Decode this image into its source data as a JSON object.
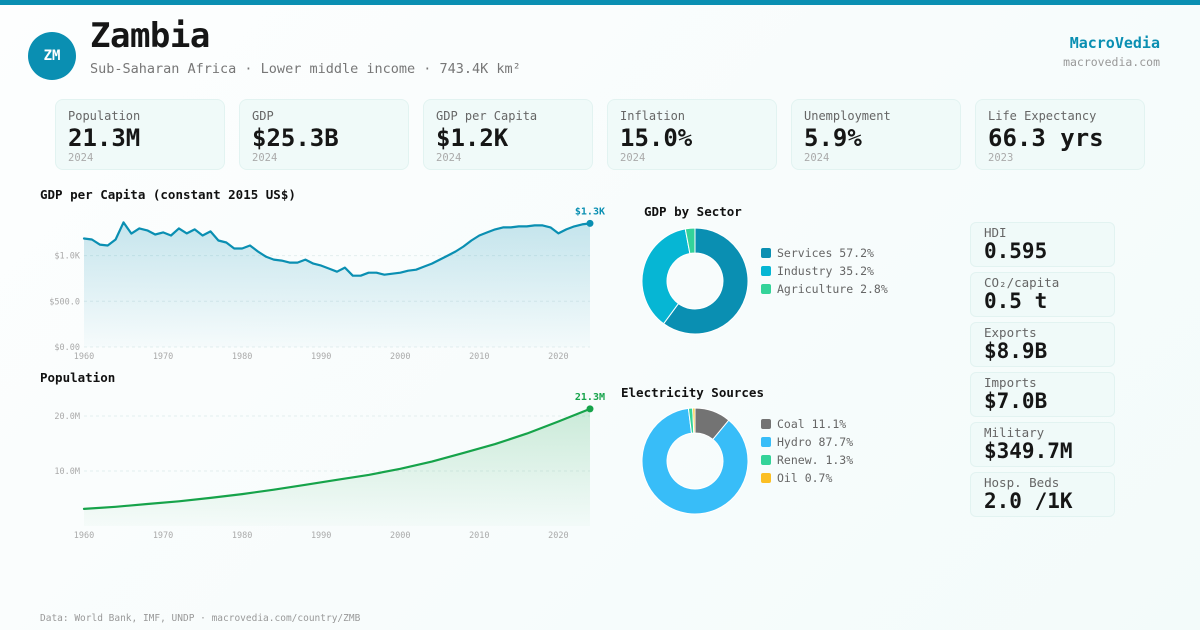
{
  "header": {
    "flag_code": "ZM",
    "country": "Zambia",
    "subtitle": "Sub-Saharan Africa · Lower middle income · 743.4K km²",
    "brand": "MacroVedia",
    "brand_url": "macrovedia.com",
    "accent_color": "#0a8fb2"
  },
  "kpis": [
    {
      "label": "Population",
      "value": "21.3M",
      "year": "2024"
    },
    {
      "label": "GDP",
      "value": "$25.3B",
      "year": "2024"
    },
    {
      "label": "GDP per Capita",
      "value": "$1.2K",
      "year": "2024"
    },
    {
      "label": "Inflation",
      "value": "15.0%",
      "year": "2024"
    },
    {
      "label": "Unemployment",
      "value": "5.9%",
      "year": "2024"
    },
    {
      "label": "Life Expectancy",
      "value": "66.3 yrs",
      "year": "2023"
    }
  ],
  "stats": [
    {
      "label": "HDI",
      "value": "0.595"
    },
    {
      "label": "CO₂/capita",
      "value": "0.5 t"
    },
    {
      "label": "Exports",
      "value": "$8.9B"
    },
    {
      "label": "Imports",
      "value": "$7.0B"
    },
    {
      "label": "Military",
      "value": "$349.7M"
    },
    {
      "label": "Hosp. Beds",
      "value": "2.0 /1K"
    }
  ],
  "footer": "Data: World Bank, IMF, UNDP · macrovedia.com/country/ZMB",
  "chart_data": [
    {
      "id": "gdp_per_capita",
      "type": "area",
      "title": "GDP per Capita (constant 2015 US$)",
      "xlabel": "",
      "ylabel": "",
      "color": "#0a8fb2",
      "x": [
        1960,
        1961,
        1962,
        1963,
        1964,
        1965,
        1966,
        1967,
        1968,
        1969,
        1970,
        1971,
        1972,
        1973,
        1974,
        1975,
        1976,
        1977,
        1978,
        1979,
        1980,
        1981,
        1982,
        1983,
        1984,
        1985,
        1986,
        1987,
        1988,
        1989,
        1990,
        1991,
        1992,
        1993,
        1994,
        1995,
        1996,
        1997,
        1998,
        1999,
        2000,
        2001,
        2002,
        2003,
        2004,
        2005,
        2006,
        2007,
        2008,
        2009,
        2010,
        2011,
        2012,
        2013,
        2014,
        2015,
        2016,
        2017,
        2018,
        2019,
        2020,
        2021,
        2022,
        2023,
        2024
      ],
      "values": [
        1187,
        1176,
        1120,
        1110,
        1176,
        1363,
        1240,
        1297,
        1275,
        1230,
        1253,
        1220,
        1297,
        1242,
        1286,
        1220,
        1264,
        1165,
        1143,
        1077,
        1077,
        1110,
        1044,
        989,
        956,
        945,
        923,
        923,
        956,
        912,
        890,
        857,
        824,
        868,
        780,
        780,
        813,
        813,
        791,
        802,
        813,
        835,
        846,
        879,
        912,
        956,
        1000,
        1044,
        1099,
        1165,
        1220,
        1253,
        1286,
        1308,
        1308,
        1319,
        1319,
        1330,
        1330,
        1308,
        1242,
        1286,
        1319,
        1341,
        1352
      ],
      "ylim": [
        0,
        1400
      ],
      "yticks": [
        0,
        500,
        1000
      ],
      "ytick_labels": [
        "$0.00",
        "$500.0",
        "$1.0K"
      ],
      "xticks": [
        1960,
        1970,
        1980,
        1990,
        2000,
        2010,
        2020
      ],
      "xtick_labels": [
        "1960",
        "1970",
        "1980",
        "1990",
        "2000",
        "2010",
        "2020"
      ],
      "end_label": "$1.3K",
      "grid": true
    },
    {
      "id": "population",
      "type": "area",
      "title": "Population",
      "xlabel": "",
      "ylabel": "",
      "color": "#16a34a",
      "x": [
        1960,
        1964,
        1968,
        1972,
        1976,
        1980,
        1984,
        1988,
        1992,
        1996,
        2000,
        2004,
        2008,
        2012,
        2016,
        2020,
        2024
      ],
      "values": [
        3.1,
        3.5,
        4.0,
        4.5,
        5.1,
        5.8,
        6.6,
        7.5,
        8.4,
        9.3,
        10.4,
        11.7,
        13.3,
        14.9,
        16.8,
        19.0,
        21.3
      ],
      "ylim": [
        0,
        22
      ],
      "yticks": [
        10,
        20
      ],
      "ytick_labels": [
        "10.0M",
        "20.0M"
      ],
      "xticks": [
        1960,
        1970,
        1980,
        1990,
        2000,
        2010,
        2020
      ],
      "xtick_labels": [
        "1960",
        "1970",
        "1980",
        "1990",
        "2000",
        "2010",
        "2020"
      ],
      "end_label": "21.3M",
      "grid": true
    },
    {
      "id": "gdp_by_sector",
      "type": "pie",
      "title": "GDP by Sector",
      "donut": true,
      "slices": [
        {
          "label": "Services",
          "value": 57.2,
          "display": "Services 57.2%",
          "color": "#0a8fb2"
        },
        {
          "label": "Industry",
          "value": 35.2,
          "display": "Industry 35.2%",
          "color": "#06b6d4"
        },
        {
          "label": "Agriculture",
          "value": 2.8,
          "display": "Agriculture 2.8%",
          "color": "#34d399"
        }
      ],
      "legend": "right"
    },
    {
      "id": "electricity_sources",
      "type": "pie",
      "title": "Electricity Sources",
      "donut": true,
      "slices": [
        {
          "label": "Coal",
          "value": 11.1,
          "display": "Coal 11.1%",
          "color": "#737373"
        },
        {
          "label": "Hydro",
          "value": 87.7,
          "display": "Hydro 87.7%",
          "color": "#38bdf8"
        },
        {
          "label": "Renew.",
          "value": 1.3,
          "display": "Renew. 1.3%",
          "color": "#34d399"
        },
        {
          "label": "Oil",
          "value": 0.7,
          "display": "Oil 0.7%",
          "color": "#fbbf24"
        }
      ],
      "legend": "right"
    }
  ]
}
